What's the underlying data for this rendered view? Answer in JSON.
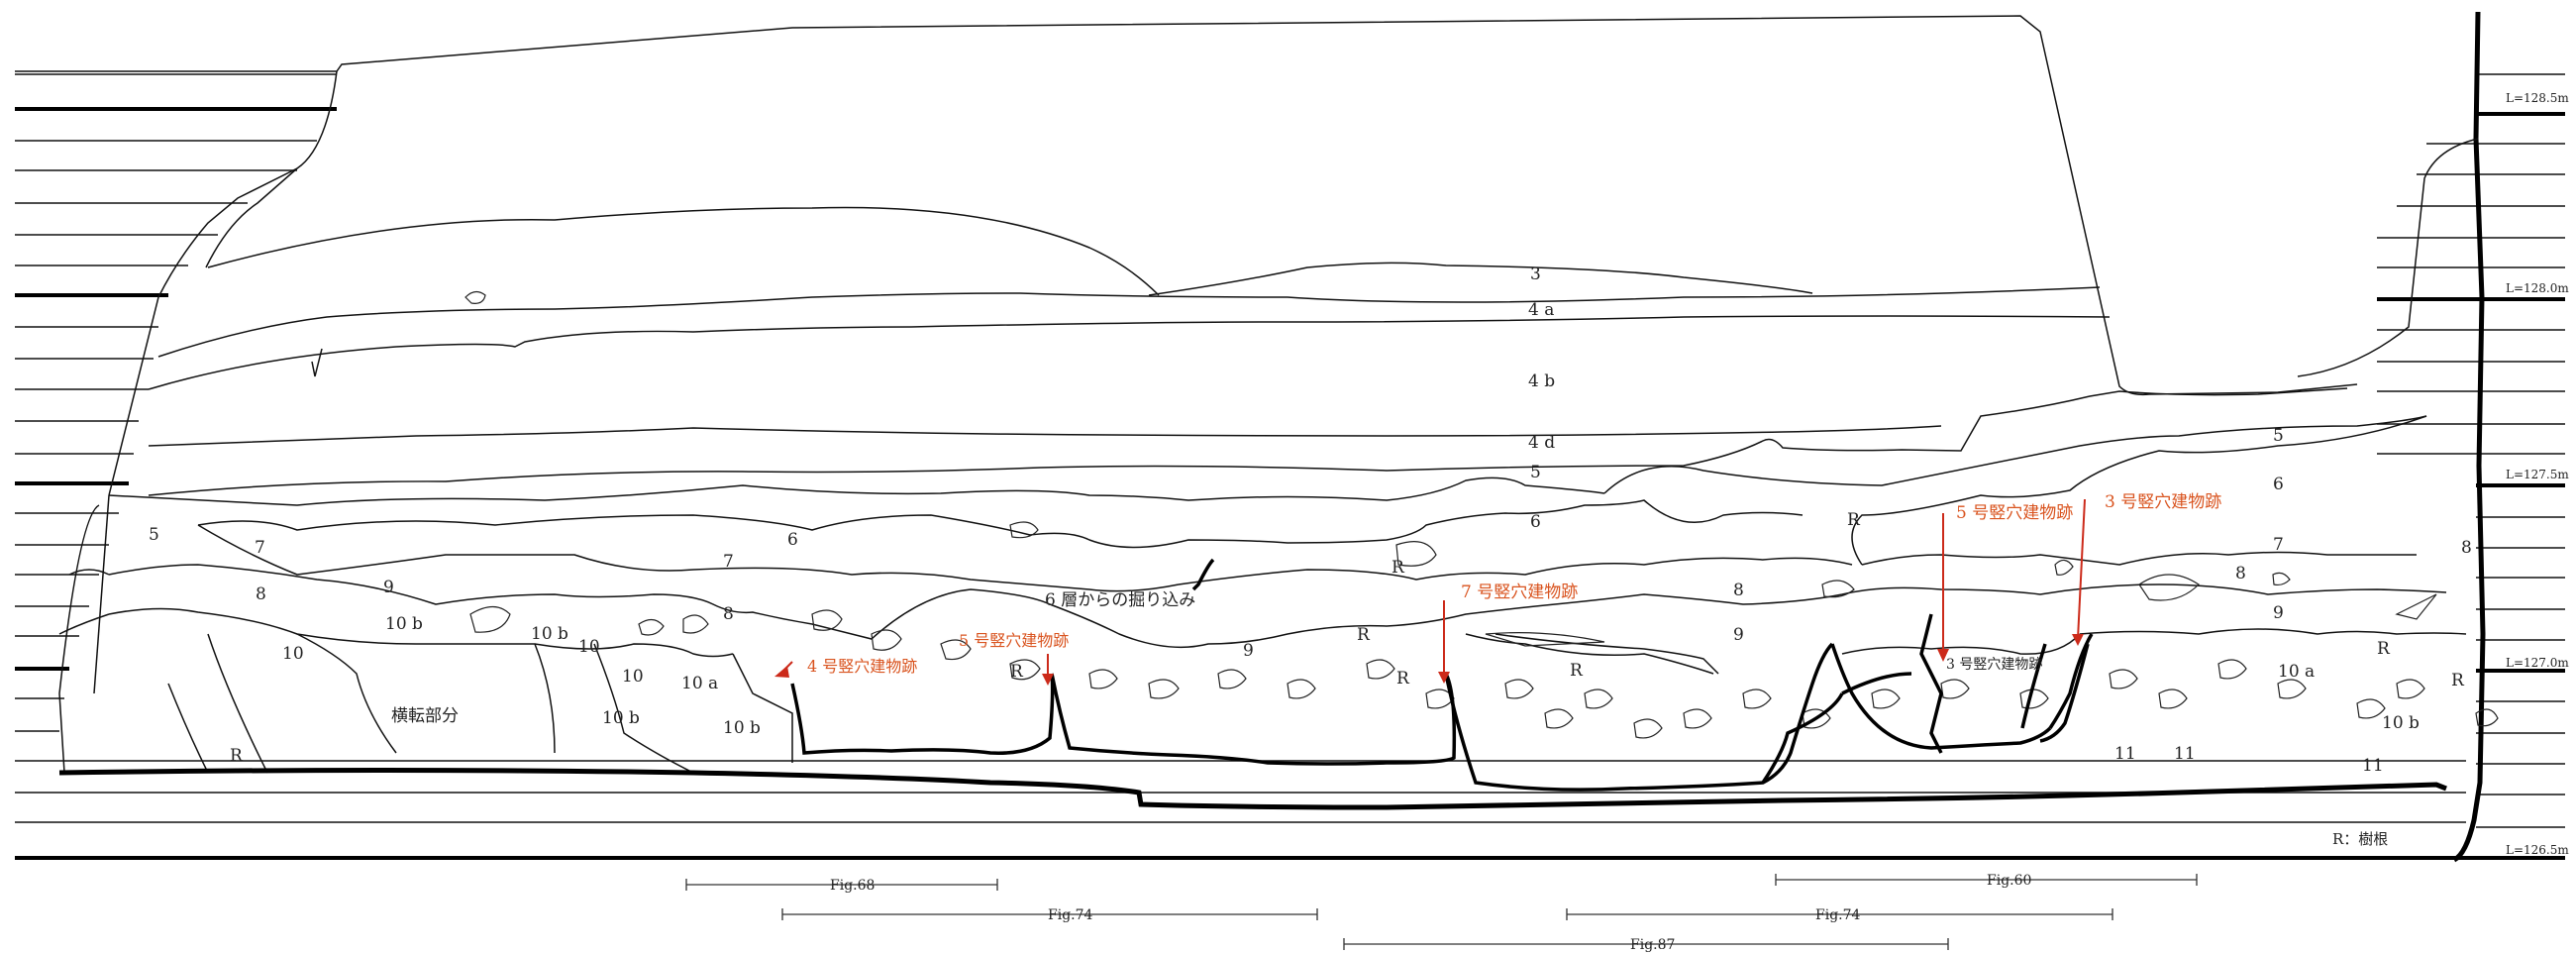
{
  "elevation_labels": [
    "L=128.5m",
    "L=128.0m",
    "L=127.5m",
    "L=127.0m",
    "L=126.5m"
  ],
  "layers": {
    "l3": "3",
    "l4a": "4 a",
    "l4b": "4 b",
    "l4d": "4 d",
    "l5": "5",
    "l6": "6",
    "l7": "7",
    "l8": "8",
    "l9": "9",
    "l10": "10",
    "l10a": "10 a",
    "l10b": "10 b",
    "l11": "11",
    "r": "R"
  },
  "annotations": {
    "overturned": "横転部分",
    "dug_from_6": "6 層からの掘り込み",
    "pit3_inner": "3 号竪穴建物跡"
  },
  "pit_labels": {
    "pit4": "4 号竪穴建物跡",
    "pit5a": "5 号竪穴建物跡",
    "pit7": "7 号竪穴建物跡",
    "pit5b": "5 号竪穴建物跡",
    "pit3": "3 号竪穴建物跡"
  },
  "legend": "R：樹根",
  "fig_refs": {
    "fig68": "Fig.68",
    "fig74a": "Fig.74",
    "fig87": "Fig.87",
    "fig60": "Fig.60",
    "fig74b": "Fig.74"
  },
  "colors": {
    "line": "#111111",
    "accent": "#d9531e",
    "arrow": "#cc2a1a"
  }
}
